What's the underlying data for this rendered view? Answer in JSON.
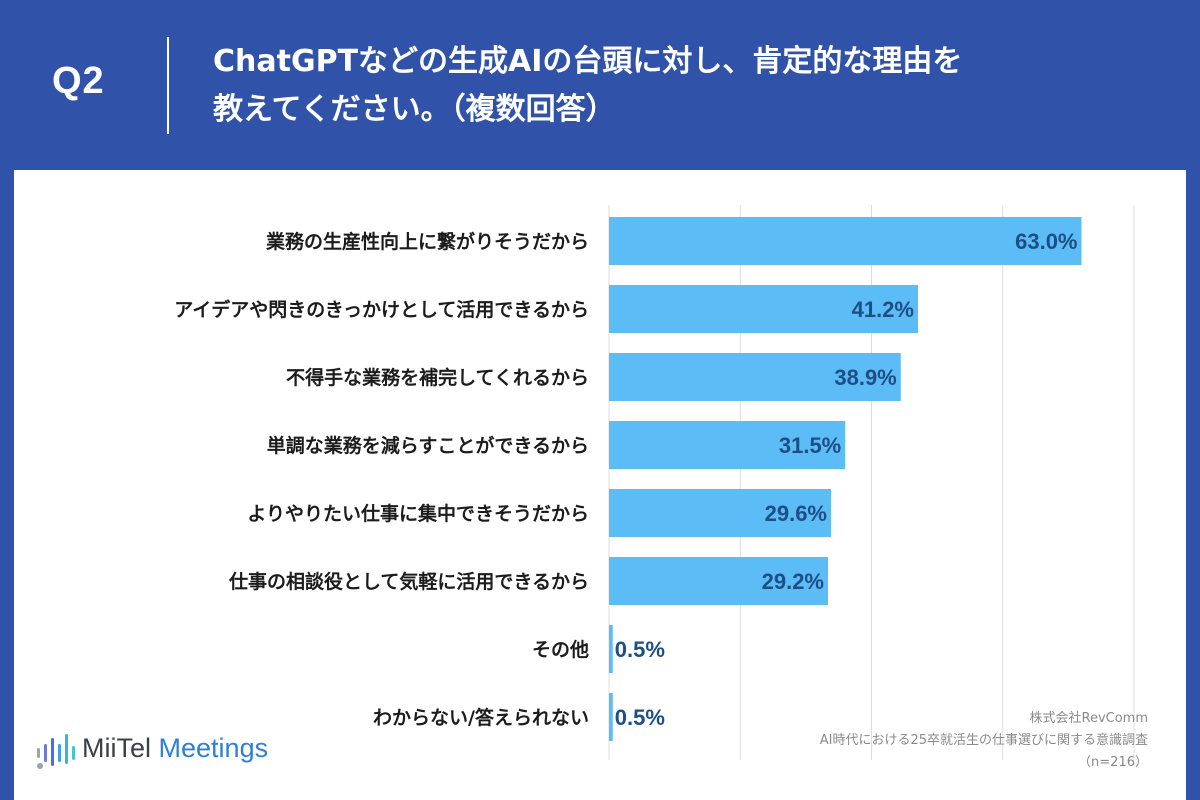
{
  "header": {
    "question_number": "Q2",
    "title_line1": "ChatGPTなどの生成AIの台頭に対し、肯定的な理由を",
    "title_line2": "教えてください。（複数回答）"
  },
  "colors": {
    "background": "#3052a8",
    "panel": "#ffffff",
    "bar": "#5bbcf6",
    "value_text": "#1d4e86",
    "gridline": "#dddddd"
  },
  "chart_data": {
    "type": "bar",
    "orientation": "horizontal",
    "categories": [
      "業務の生産性向上に繋がりそうだから",
      "アイデアや閃きのきっかけとして活用できるから",
      "不得手な業務を補完してくれるから",
      "単調な業務を減らすことができるから",
      "よりやりたい仕事に集中できそうだから",
      "仕事の相談役として気軽に活用できるから",
      "その他",
      "わからない/答えられない"
    ],
    "values": [
      63.0,
      41.2,
      38.9,
      31.5,
      29.6,
      29.2,
      0.5,
      0.5
    ],
    "value_labels": [
      "63.0%",
      "41.2%",
      "38.9%",
      "31.5%",
      "29.6%",
      "29.2%",
      "0.5%",
      "0.5%"
    ],
    "xlim": [
      0,
      70
    ],
    "grid": true
  },
  "logo": {
    "word1": "MiiTel",
    "word2": "Meetings"
  },
  "source": {
    "company": "株式会社RevComm",
    "survey": "AI時代における25卒就活生の仕事選びに関する意識調査",
    "sample": "（n=216）"
  }
}
